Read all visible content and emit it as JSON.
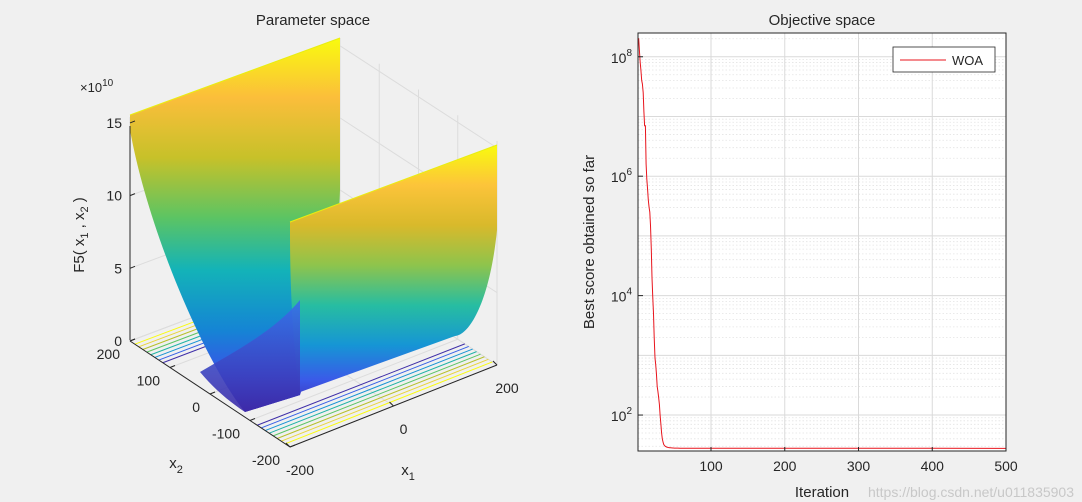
{
  "chart_data": [
    {
      "type": "surface",
      "title": "Parameter space",
      "xlabel": "x",
      "xlabel_sub": "1",
      "ylabel": "x",
      "ylabel_sub": "2",
      "zlabel_main": "F5( x",
      "zlabel_sub1": "1",
      "zlabel_sep": " , x",
      "zlabel_sub2": "2",
      "zlabel_end": " )",
      "z_exponent_base": "×10",
      "z_exponent_power": "10",
      "xlim": [
        -200,
        200
      ],
      "ylim": [
        -200,
        200
      ],
      "zlim": [
        0,
        15
      ],
      "x_ticks": [
        -200,
        0,
        200
      ],
      "y_ticks": [
        -200,
        -100,
        0,
        100,
        200
      ],
      "z_ticks": [
        0,
        5,
        10,
        15
      ],
      "colormap": "parula",
      "contour_projection": true,
      "grid": true
    },
    {
      "type": "line",
      "title": "Objective space",
      "xlabel": "Iteration",
      "ylabel": "Best score obtained so far",
      "yscale": "log",
      "xlim": [
        1,
        500
      ],
      "ylim": [
        25,
        250000000
      ],
      "x_ticks": [
        100,
        200,
        300,
        400,
        500
      ],
      "y_tick_labels": [
        {
          "base": "10",
          "exp": "2",
          "value": 100
        },
        {
          "base": "10",
          "exp": "4",
          "value": 10000
        },
        {
          "base": "10",
          "exp": "6",
          "value": 1000000
        },
        {
          "base": "10",
          "exp": "8",
          "value": 100000000
        }
      ],
      "grid": true,
      "minor_grid": true,
      "legend_position": "top-right",
      "series": [
        {
          "name": "WOA",
          "color": "#e8141c",
          "x": [
            1,
            2,
            3,
            4,
            5,
            6,
            7,
            8,
            9,
            10,
            11,
            12,
            13,
            14,
            15,
            16,
            17,
            18,
            19,
            20,
            21,
            22,
            23,
            24,
            25,
            26,
            27,
            28,
            29,
            30,
            31,
            32,
            33,
            34,
            35,
            36,
            37,
            38,
            39,
            40,
            41,
            42,
            43,
            44,
            45,
            46,
            47,
            48,
            49,
            50,
            51,
            52,
            53,
            55,
            58,
            62,
            70,
            100,
            200,
            300,
            400,
            500
          ],
          "y": [
            200000000,
            200000000,
            120000000,
            80000000,
            60000000,
            40000000,
            35000000,
            25000000,
            12000000,
            7000000,
            7000000,
            1600000,
            900000,
            600000,
            400000,
            300000,
            250000,
            150000,
            60000,
            20000,
            10000,
            5000,
            2000,
            900,
            700,
            500,
            300,
            250,
            200,
            150,
            100,
            70,
            50,
            40,
            35,
            32,
            31,
            30,
            29.5,
            29,
            28.8,
            28.6,
            28.5,
            28.4,
            28.3,
            28.2,
            28.15,
            28.1,
            28.05,
            28.0,
            27.98,
            27.96,
            27.94,
            27.92,
            27.9,
            27.88,
            27.85,
            27.8,
            27.75,
            27.72,
            27.7,
            27.68
          ]
        }
      ]
    }
  ],
  "watermark": "https://blog.csdn.net/u011835903"
}
